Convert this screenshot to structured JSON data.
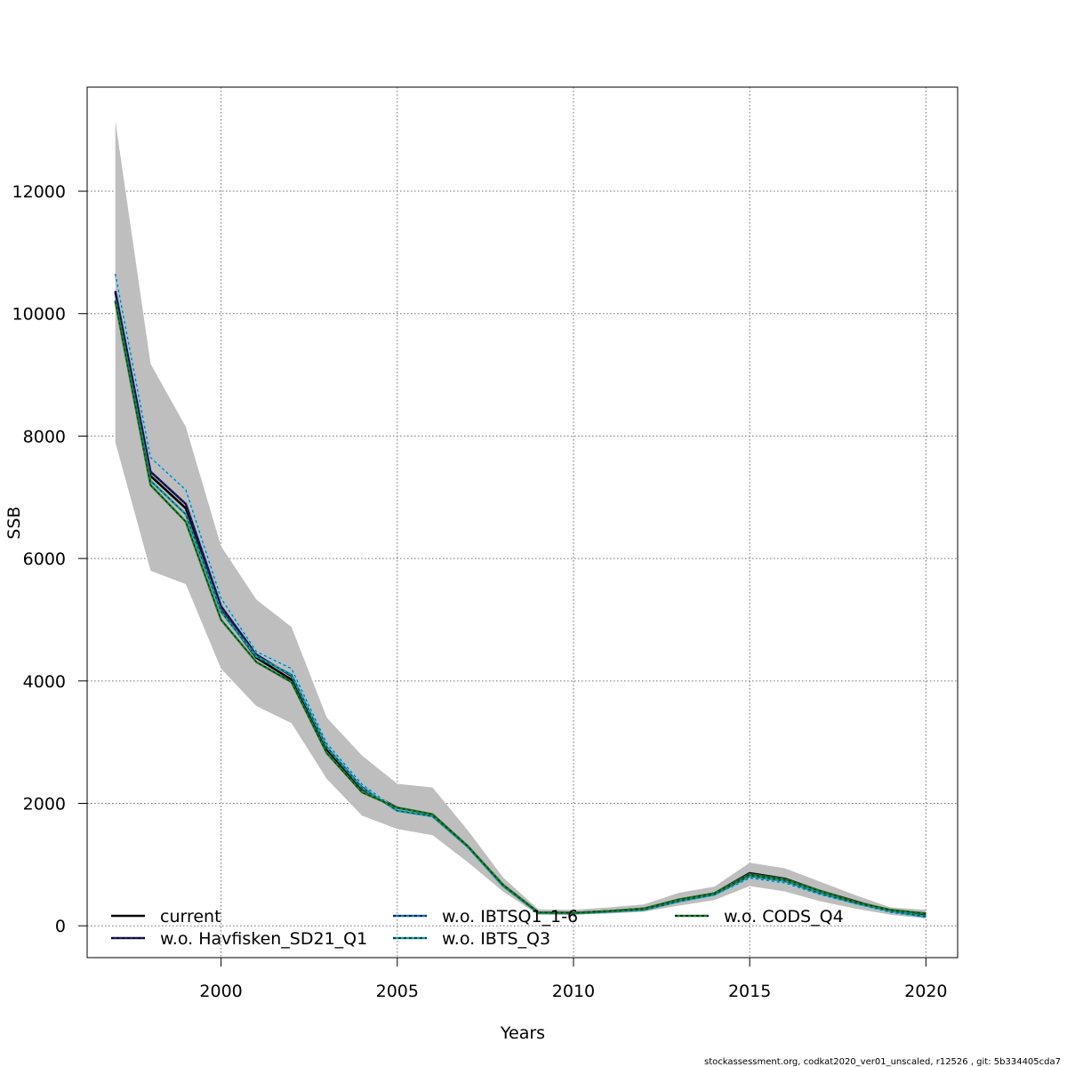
{
  "chart_data": {
    "type": "line",
    "xlabel": "Years",
    "ylabel": "SSB",
    "xlim": [
      1996.2,
      2020.9
    ],
    "ylim": [
      -520,
      13700
    ],
    "x_ticks": [
      2000,
      2005,
      2010,
      2015,
      2020
    ],
    "y_ticks": [
      0,
      2000,
      4000,
      6000,
      8000,
      10000,
      12000
    ],
    "x_tick_labels": [
      "2000",
      "2005",
      "2010",
      "2015",
      "2020"
    ],
    "y_tick_labels": [
      "0",
      "2000",
      "4000",
      "6000",
      "8000",
      "10000",
      "12000"
    ],
    "grid": true,
    "legend_position": "bottom",
    "x": [
      1997,
      1998,
      1999,
      2000,
      2001,
      2002,
      2003,
      2004,
      2005,
      2006,
      2007,
      2008,
      2009,
      2010,
      2011,
      2012,
      2013,
      2014,
      2015,
      2016,
      2017,
      2018,
      2019,
      2020
    ],
    "confidence_band": {
      "color": "#bebebe",
      "lower": [
        7900,
        5800,
        5580,
        4200,
        3590,
        3310,
        2400,
        1800,
        1580,
        1480,
        1040,
        560,
        180,
        180,
        200,
        230,
        330,
        420,
        650,
        560,
        400,
        280,
        180,
        120
      ],
      "upper": [
        13150,
        9180,
        8150,
        6200,
        5330,
        4880,
        3400,
        2780,
        2320,
        2260,
        1560,
        790,
        270,
        260,
        300,
        350,
        540,
        640,
        1030,
        940,
        720,
        500,
        300,
        260
      ]
    },
    "series": [
      {
        "name": "current",
        "color": "#000000",
        "dash": "",
        "values": [
          10350,
          7350,
          6820,
          5150,
          4380,
          4020,
          2880,
          2230,
          1930,
          1820,
          1300,
          670,
          220,
          210,
          240,
          280,
          430,
          530,
          860,
          770,
          570,
          400,
          240,
          180
        ]
      },
      {
        "name": "w.o. Havfisken_SD21_Q1",
        "color": "#1d1a5e",
        "dash": "",
        "values": [
          10370,
          7420,
          6890,
          5220,
          4430,
          4080,
          2920,
          2260,
          1920,
          1810,
          1290,
          660,
          220,
          210,
          240,
          280,
          420,
          530,
          850,
          760,
          560,
          390,
          230,
          170
        ]
      },
      {
        "name": "w.o. IBTSQ1_1-6",
        "color": "#87ceeb",
        "dash": "",
        "values": [
          10650,
          7650,
          7120,
          5350,
          4480,
          4200,
          2980,
          2310,
          1890,
          1800,
          1280,
          650,
          210,
          200,
          230,
          270,
          400,
          500,
          780,
          700,
          510,
          360,
          220,
          140
        ]
      },
      {
        "name": "w.o. IBTS_Q3",
        "color": "#1a9ea4",
        "dash": "",
        "values": [
          10220,
          7270,
          6720,
          5130,
          4400,
          4100,
          2920,
          2250,
          1880,
          1790,
          1290,
          650,
          210,
          200,
          230,
          260,
          400,
          510,
          810,
          730,
          530,
          370,
          240,
          150
        ]
      },
      {
        "name": "w.o. CODS_Q4",
        "color": "#1e7b2c",
        "dash": "",
        "values": [
          10200,
          7200,
          6600,
          5000,
          4310,
          3980,
          2820,
          2180,
          1930,
          1820,
          1300,
          670,
          220,
          210,
          240,
          280,
          430,
          530,
          840,
          760,
          570,
          390,
          260,
          200
        ]
      }
    ],
    "legend": [
      {
        "label": "current",
        "color": "#000000",
        "inner": ""
      },
      {
        "label": "w.o. Havfisken_SD21_Q1",
        "color": "#1d1a5e",
        "inner": "#000000"
      },
      {
        "label": "w.o. IBTSQ1_1-6",
        "color": "#1f6fc2",
        "inner": "#000000"
      },
      {
        "label": "w.o. IBTS_Q3",
        "color": "#1a9ea4",
        "inner": "#000000"
      },
      {
        "label": "w.o. CODS_Q4",
        "color": "#1e7b2c",
        "inner": "#000000"
      }
    ]
  },
  "footer": "stockassessment.org, codkat2020_ver01_unscaled, r12526 , git: 5b334405cda7"
}
